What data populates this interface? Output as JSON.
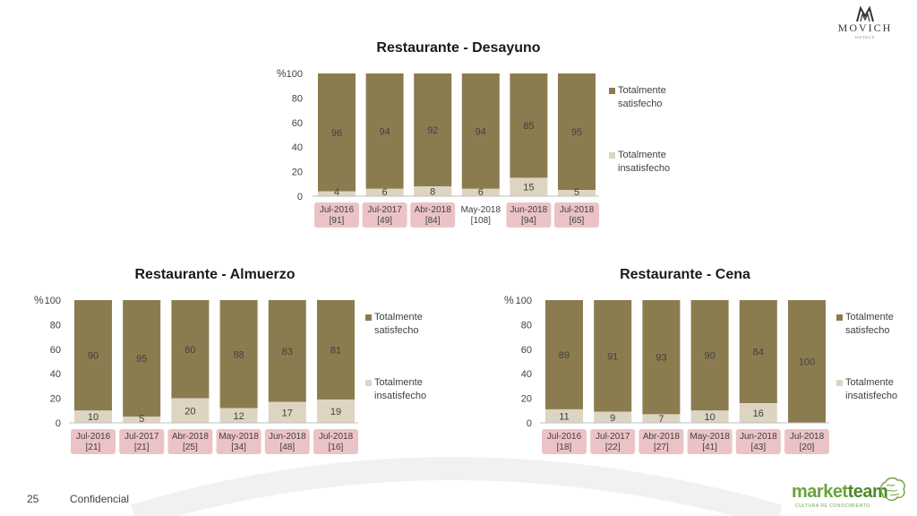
{
  "header": {
    "logo_word": "MOVICH",
    "logo_sub": "HOTELS"
  },
  "footer": {
    "page_number": "25",
    "confidential": "Confidencial",
    "brand_part1": "market",
    "brand_part2": "team",
    "brand_sub": "CULTURA DE CONOCIMIENTO"
  },
  "colors": {
    "satisfied": "#8b7c4f",
    "unsatisfied": "#ddd4c1",
    "category_band": "#ebc3c6"
  },
  "chart_data": [
    {
      "type": "bar",
      "stacked": true,
      "title": "Restaurante - Desayuno",
      "yunit": "%",
      "ylim": [
        0,
        100
      ],
      "yticks": [
        "0",
        "20",
        "40",
        "60",
        "80",
        "100"
      ],
      "legend_position": "right",
      "categories": [
        {
          "period": "Jul-2016",
          "n": "[91]",
          "highlighted": true
        },
        {
          "period": "Jul-2017",
          "n": "[49]",
          "highlighted": true
        },
        {
          "period": "Abr-2018",
          "n": "[84]",
          "highlighted": true
        },
        {
          "period": "May-2018",
          "n": "[108]",
          "highlighted": false
        },
        {
          "period": "Jun-2018",
          "n": "[94]",
          "highlighted": true
        },
        {
          "period": "Jul-2018",
          "n": "[65]",
          "highlighted": true
        }
      ],
      "series": [
        {
          "name": "Totalmente insatisfecho",
          "values": [
            4,
            6,
            8,
            6,
            15,
            5
          ]
        },
        {
          "name": "Totalmente satisfecho",
          "values": [
            96,
            94,
            92,
            94,
            85,
            95
          ]
        }
      ]
    },
    {
      "type": "bar",
      "stacked": true,
      "title": "Restaurante - Almuerzo",
      "yunit": "%",
      "ylim": [
        0,
        100
      ],
      "yticks": [
        "0",
        "20",
        "40",
        "60",
        "80",
        "100"
      ],
      "legend_position": "right",
      "categories": [
        {
          "period": "Jul-2016",
          "n": "[21]",
          "highlighted": true
        },
        {
          "period": "Jul-2017",
          "n": "[21]",
          "highlighted": true
        },
        {
          "period": "Abr-2018",
          "n": "[25]",
          "highlighted": true
        },
        {
          "period": "May-2018",
          "n": "[34]",
          "highlighted": true
        },
        {
          "period": "Jun-2018",
          "n": "[48]",
          "highlighted": true
        },
        {
          "period": "Jul-2018",
          "n": "[16]",
          "highlighted": true
        }
      ],
      "series": [
        {
          "name": "Totalmente insatisfecho",
          "values": [
            10,
            5,
            20,
            12,
            17,
            19
          ]
        },
        {
          "name": "Totalmente satisfecho",
          "values": [
            90,
            95,
            80,
            88,
            83,
            81
          ]
        }
      ]
    },
    {
      "type": "bar",
      "stacked": true,
      "title": "Restaurante - Cena",
      "yunit": "%",
      "ylim": [
        0,
        100
      ],
      "yticks": [
        "0",
        "20",
        "40",
        "60",
        "80",
        "100"
      ],
      "legend_position": "right",
      "categories": [
        {
          "period": "Jul-2016",
          "n": "[18]",
          "highlighted": true
        },
        {
          "period": "Jul-2017",
          "n": "[22]",
          "highlighted": true
        },
        {
          "period": "Abr-2018",
          "n": "[27]",
          "highlighted": true
        },
        {
          "period": "May-2018",
          "n": "[41]",
          "highlighted": true
        },
        {
          "period": "Jun-2018",
          "n": "[43]",
          "highlighted": true
        },
        {
          "period": "Jul-2018",
          "n": "[20]",
          "highlighted": true
        }
      ],
      "series": [
        {
          "name": "Totalmente insatisfecho",
          "values": [
            11,
            9,
            7,
            10,
            16,
            0
          ]
        },
        {
          "name": "Totalmente satisfecho",
          "values": [
            89,
            91,
            93,
            90,
            84,
            100
          ]
        }
      ]
    }
  ]
}
